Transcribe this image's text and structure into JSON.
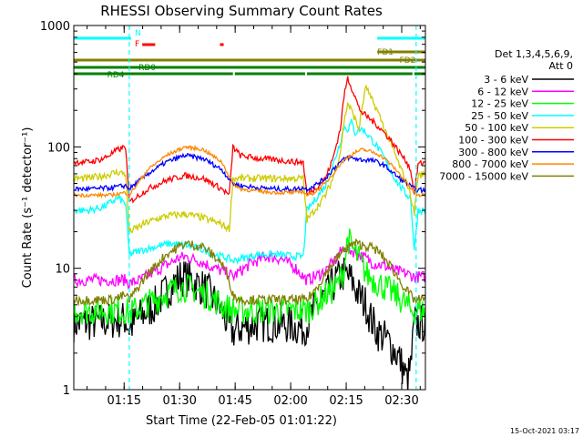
{
  "chart_data": {
    "type": "line",
    "title": "RHESSI Observing Summary Count Rates",
    "xlabel": "Start Time (22-Feb-05 01:01:22)",
    "ylabel": "Count Rate (s⁻¹ detector⁻¹)",
    "xlim_minutes": [
      0,
      95
    ],
    "ylim": [
      1,
      1000
    ],
    "yscale": "log",
    "x_ticks": [
      {
        "label": "01:15",
        "minutes": 13.6
      },
      {
        "label": "01:30",
        "minutes": 28.6
      },
      {
        "label": "01:45",
        "minutes": 43.6
      },
      {
        "label": "02:00",
        "minutes": 58.6
      },
      {
        "label": "02:15",
        "minutes": 73.6
      },
      {
        "label": "02:30",
        "minutes": 88.6
      }
    ],
    "y_ticks": [
      {
        "label": "1",
        "value": 1
      },
      {
        "label": "10",
        "value": 10
      },
      {
        "label": "100",
        "value": 100
      },
      {
        "label": "1000",
        "value": 1000
      }
    ],
    "legend_title": "Det 1,3,4,5,6,9,",
    "legend_subtitle": "Att 0",
    "legend_position": "right",
    "series": [
      {
        "name": "3 - 6 keV",
        "color": "#000000",
        "x": [
          0,
          6,
          14,
          15,
          18,
          22,
          26,
          29,
          32,
          36,
          40,
          42,
          43,
          45,
          50,
          55,
          58,
          60,
          62,
          63,
          65,
          68,
          71,
          73,
          75,
          77,
          79,
          80,
          82,
          85,
          88,
          90,
          91,
          92,
          93,
          95
        ],
        "values": [
          3.5,
          3.6,
          3.8,
          3.2,
          4,
          5,
          7,
          8.5,
          8,
          6.5,
          4.5,
          3.2,
          3,
          3.2,
          3.5,
          3.5,
          3.4,
          3.3,
          3.2,
          3.5,
          4.5,
          6,
          8,
          9,
          8,
          6,
          5,
          4,
          3,
          2.5,
          1.8,
          1.2,
          1.5,
          3.5,
          3.5,
          3.5
        ]
      },
      {
        "name": "6 - 12 keV",
        "color": "#ff00ff",
        "x": [
          0,
          5,
          10,
          14,
          15,
          18,
          22,
          26,
          28,
          30,
          34,
          38,
          42,
          43,
          44,
          48,
          52,
          56,
          60,
          62,
          63,
          65,
          68,
          71,
          73,
          75,
          77,
          79,
          81,
          84,
          87,
          90,
          91,
          92,
          93,
          95
        ],
        "values": [
          8,
          8,
          8,
          8,
          7.5,
          8,
          9.5,
          11,
          12,
          12.5,
          11.5,
          10,
          9,
          8.5,
          9,
          11,
          12.5,
          12,
          10,
          8.5,
          8,
          8.5,
          9.5,
          12,
          15,
          14,
          13,
          12,
          11,
          10.5,
          9.5,
          9,
          8.8,
          8.5,
          8.5,
          8.5
        ]
      },
      {
        "name": "12 - 25 keV",
        "color": "#00ff00",
        "x": [
          0,
          14,
          15,
          18,
          22,
          26,
          29,
          32,
          36,
          40,
          43,
          45,
          50,
          55,
          60,
          63,
          65,
          68,
          71,
          73,
          74,
          75,
          77,
          79,
          81,
          84,
          87,
          90,
          91,
          93,
          95
        ],
        "values": [
          4.5,
          4.5,
          4.2,
          4.8,
          5.5,
          6.5,
          7,
          6.8,
          6,
          5,
          4.5,
          4.5,
          4.5,
          4.5,
          4.5,
          4.5,
          5,
          6,
          7,
          10,
          18,
          15,
          12,
          9,
          8,
          7,
          6,
          5,
          4.5,
          4.5,
          4.5
        ]
      },
      {
        "name": "25 - 50 keV",
        "color": "#00ffff",
        "x": [
          0,
          4,
          8,
          12,
          14,
          15,
          18,
          22,
          26,
          30,
          34,
          38,
          42,
          43,
          45,
          50,
          55,
          60,
          62,
          63,
          65,
          68,
          70,
          72,
          73,
          74,
          75,
          76,
          77,
          78,
          80,
          82,
          84,
          86,
          88,
          90,
          91,
          92,
          93,
          95
        ],
        "values": [
          30,
          30,
          32,
          38,
          34,
          13,
          14,
          15,
          16,
          15.5,
          14.5,
          13,
          12,
          11.5,
          12,
          13,
          13,
          12.5,
          12.5,
          30,
          36,
          48,
          70,
          110,
          145,
          140,
          160,
          130,
          140,
          140,
          120,
          100,
          80,
          60,
          48,
          40,
          38,
          14,
          30,
          30
        ]
      },
      {
        "name": "50 - 100 keV",
        "color": "#cccc00",
        "x": [
          0,
          4,
          8,
          12,
          14,
          15,
          20,
          25,
          30,
          35,
          40,
          42,
          43,
          45,
          50,
          55,
          60,
          62,
          63,
          65,
          68,
          70,
          72,
          73,
          74,
          75,
          76,
          77,
          78,
          79,
          80,
          82,
          84,
          86,
          88,
          90,
          91,
          92,
          93,
          95
        ],
        "values": [
          55,
          55,
          58,
          62,
          60,
          20,
          24,
          27,
          28,
          26,
          23,
          21,
          55,
          55,
          55,
          55,
          55,
          55,
          25,
          30,
          40,
          55,
          90,
          160,
          230,
          200,
          170,
          140,
          220,
          320,
          260,
          200,
          140,
          100,
          70,
          50,
          40,
          28,
          58,
          60
        ]
      },
      {
        "name": "100 - 300 keV",
        "color": "#ff0000",
        "x": [
          0,
          4,
          8,
          12,
          14,
          15,
          20,
          25,
          30,
          35,
          40,
          42,
          43,
          45,
          50,
          55,
          60,
          62,
          63,
          65,
          68,
          70,
          72,
          73,
          74,
          75,
          76,
          77,
          78,
          80,
          82,
          84,
          86,
          88,
          90,
          91,
          92,
          93,
          95
        ],
        "values": [
          75,
          75,
          80,
          95,
          100,
          35,
          45,
          53,
          58,
          55,
          45,
          40,
          100,
          85,
          80,
          78,
          75,
          75,
          40,
          45,
          55,
          80,
          140,
          260,
          370,
          310,
          260,
          210,
          190,
          170,
          150,
          130,
          110,
          90,
          75,
          65,
          40,
          72,
          75
        ]
      },
      {
        "name": "300 - 800 keV",
        "color": "#0000ff",
        "x": [
          0,
          5,
          10,
          14,
          15,
          20,
          25,
          30,
          35,
          40,
          43,
          45,
          50,
          55,
          60,
          62,
          63,
          65,
          68,
          70,
          72,
          74,
          76,
          78,
          80,
          82,
          84,
          86,
          88,
          90,
          92,
          93,
          95
        ],
        "values": [
          45,
          45,
          46,
          48,
          45,
          60,
          75,
          85,
          80,
          65,
          50,
          48,
          46,
          45,
          45,
          46,
          45,
          48,
          55,
          65,
          75,
          82,
          80,
          78,
          78,
          75,
          70,
          62,
          55,
          50,
          45,
          44,
          44
        ]
      },
      {
        "name": "800 - 7000 keV",
        "color": "#ff8800",
        "x": [
          0,
          5,
          10,
          14,
          15,
          20,
          25,
          30,
          35,
          40,
          43,
          45,
          50,
          55,
          60,
          62,
          63,
          65,
          68,
          70,
          72,
          74,
          76,
          78,
          80,
          82,
          84,
          86,
          88,
          90,
          92,
          93,
          95
        ],
        "values": [
          40,
          40,
          40,
          42,
          40,
          65,
          85,
          100,
          95,
          75,
          50,
          45,
          43,
          42,
          42,
          43,
          40,
          42,
          50,
          60,
          72,
          82,
          90,
          95,
          92,
          88,
          80,
          70,
          60,
          50,
          42,
          40,
          40
        ]
      },
      {
        "name": "7000 - 15000 keV",
        "color": "#808000",
        "x": [
          0,
          5,
          10,
          14,
          15,
          20,
          25,
          30,
          35,
          40,
          42,
          43,
          45,
          50,
          55,
          60,
          62,
          63,
          65,
          68,
          70,
          72,
          74,
          76,
          78,
          80,
          82,
          84,
          86,
          88,
          90,
          92,
          93,
          95
        ],
        "values": [
          5.5,
          5.5,
          5.5,
          6,
          5.5,
          9,
          13,
          16,
          15,
          11,
          8,
          6,
          5.5,
          5.5,
          5.5,
          5.5,
          5.5,
          5.5,
          6.5,
          9,
          11,
          13,
          15,
          16,
          15.5,
          15,
          14,
          12,
          10,
          8,
          6.5,
          5.5,
          5.5,
          5.5
        ]
      }
    ],
    "annotations": [
      {
        "label": "N",
        "color": "#00ffff",
        "minutes": 16.5
      },
      {
        "label": "F",
        "color": "#ff0000",
        "minutes": 16.5
      },
      {
        "label": "FD1",
        "color": "#808000",
        "minutes": 82
      },
      {
        "label": "FD2",
        "color": "#808000",
        "minutes": 88
      },
      {
        "label": "RD0",
        "color": "#008000",
        "minutes": 17.5
      },
      {
        "label": "RD4",
        "color": "#008000",
        "minutes": 9
      }
    ],
    "flag_bars": [
      {
        "row": "N",
        "color": "#00ffff",
        "segments": [
          [
            0,
            15.5
          ],
          [
            82,
            95
          ]
        ]
      },
      {
        "row": "F",
        "color": "#ff0000",
        "segments": [
          [
            18.5,
            22
          ],
          [
            39.5,
            40.5
          ]
        ]
      },
      {
        "row": "FD1",
        "color": "#808000",
        "segments": [
          [
            82,
            95
          ]
        ]
      },
      {
        "row": "FD2",
        "color": "#808000",
        "segments": [
          [
            0,
            95
          ]
        ]
      },
      {
        "row": "RD0",
        "color": "#008000",
        "segments": [
          [
            0,
            95
          ]
        ]
      },
      {
        "row": "RD4",
        "color": "#008000",
        "segments": [
          [
            0,
            43
          ],
          [
            43.5,
            62.5
          ],
          [
            63,
            91.5
          ],
          [
            92,
            95
          ]
        ]
      }
    ],
    "event_lines": [
      {
        "minutes": 15,
        "color": "#00ffff"
      },
      {
        "minutes": 92.5,
        "color": "#00ffff"
      }
    ],
    "colors": {
      "axis": "#000000",
      "background": "#ffffff"
    }
  },
  "timestamp": "15-Oct-2021 03:17"
}
